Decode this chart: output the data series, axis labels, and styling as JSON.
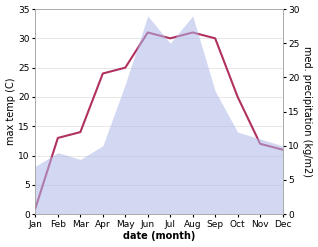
{
  "months": [
    "Jan",
    "Feb",
    "Mar",
    "Apr",
    "May",
    "Jun",
    "Jul",
    "Aug",
    "Sep",
    "Oct",
    "Nov",
    "Dec"
  ],
  "temperature": [
    1,
    13,
    14,
    24,
    25,
    31,
    30,
    31,
    30,
    20,
    12,
    11
  ],
  "precipitation": [
    7,
    9,
    8,
    10,
    19,
    29,
    25,
    29,
    18,
    12,
    11,
    10
  ],
  "temp_ylim": [
    0,
    35
  ],
  "precip_ylim": [
    0,
    30
  ],
  "temp_yticks": [
    0,
    5,
    10,
    15,
    20,
    25,
    30,
    35
  ],
  "precip_yticks": [
    0,
    5,
    10,
    15,
    20,
    25,
    30
  ],
  "temp_color": "#b03060",
  "precip_fill_color": "#b0b8e8",
  "precip_fill_alpha": 0.55,
  "xlabel": "date (month)",
  "ylabel_left": "max temp (C)",
  "ylabel_right": "med. precipitation (kg/m2)",
  "bg_color": "#ffffff",
  "grid_color": "#dddddd",
  "label_fontsize": 7,
  "tick_fontsize": 6.5
}
